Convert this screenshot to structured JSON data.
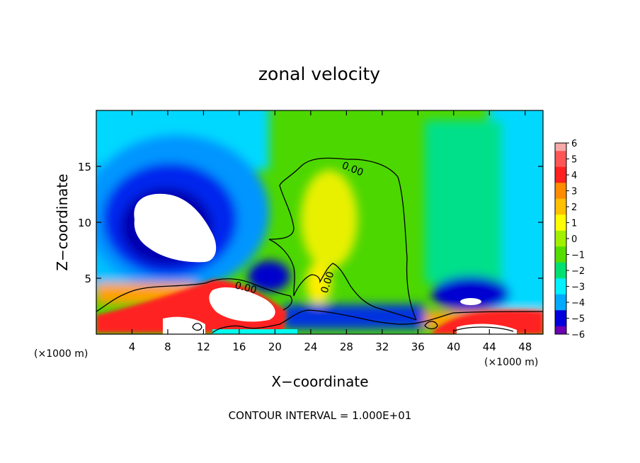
{
  "chart_data": {
    "type": "heatmap",
    "title": "zonal velocity",
    "xlabel": "X−coordinate",
    "ylabel": "Z−coordinate",
    "x_unit_left": "(×1000 m)",
    "x_unit_right": "(×1000 m)",
    "xlim": [
      0,
      50
    ],
    "ylim": [
      0,
      20
    ],
    "x_ticks": [
      4,
      8,
      12,
      16,
      20,
      24,
      28,
      32,
      36,
      40,
      44,
      48
    ],
    "y_ticks": [
      5,
      10,
      15
    ],
    "colorbar": {
      "labels": [
        "6",
        "5",
        "4",
        "3",
        "2",
        "1",
        "0",
        "−1",
        "−2",
        "−3",
        "−4",
        "−5",
        "−6"
      ],
      "colors": [
        "#f7a8a8",
        "#ff5555",
        "#ff2020",
        "#ff8c00",
        "#ffc000",
        "#ffff00",
        "#a0f000",
        "#55dd00",
        "#00e070",
        "#00f0ff",
        "#00aaff",
        "#0000dd",
        "#6a00b0"
      ]
    },
    "background_color": "#4cd700",
    "contour_labels": [
      "0.00",
      "0.00",
      "0.00"
    ],
    "footer": "CONTOUR INTERVAL = 1.000E+01"
  }
}
